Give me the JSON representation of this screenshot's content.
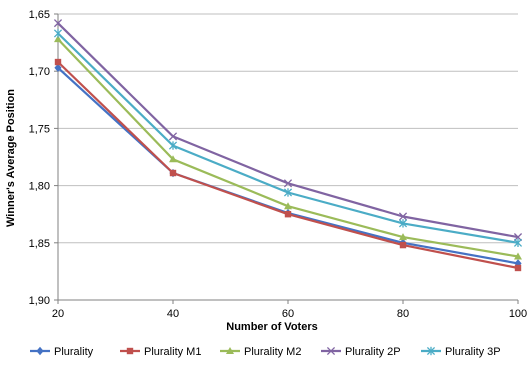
{
  "chart_data": {
    "type": "line",
    "xlabel": "Number of Voters",
    "ylabel": "Winner's Average Position",
    "x": [
      20,
      40,
      60,
      80,
      100
    ],
    "x_ticks": [
      "20",
      "40",
      "60",
      "80",
      "100"
    ],
    "y_ticks": [
      {
        "value": 1.65,
        "label": "1,65"
      },
      {
        "value": 1.7,
        "label": "1,70"
      },
      {
        "value": 1.75,
        "label": "1,75"
      },
      {
        "value": 1.8,
        "label": "1,80"
      },
      {
        "value": 1.85,
        "label": "1,85"
      },
      {
        "value": 1.9,
        "label": "1,90"
      }
    ],
    "ylim": [
      1.65,
      1.9
    ],
    "y_inverted": true,
    "grid": "horizontal",
    "legend_position": "bottom",
    "series": [
      {
        "name": "Plurality",
        "color": "#4472C4",
        "marker": "diamond",
        "values": [
          1.697,
          1.789,
          1.824,
          1.85,
          1.868
        ]
      },
      {
        "name": "Plurality M1",
        "color": "#C0504D",
        "marker": "square",
        "values": [
          1.692,
          1.789,
          1.825,
          1.852,
          1.872
        ]
      },
      {
        "name": "Plurality M2",
        "color": "#9BBB59",
        "marker": "triangle",
        "values": [
          1.672,
          1.777,
          1.818,
          1.845,
          1.862
        ]
      },
      {
        "name": "Plurality 2P",
        "color": "#8064A2",
        "marker": "x",
        "values": [
          1.658,
          1.757,
          1.798,
          1.827,
          1.845
        ]
      },
      {
        "name": "Plurality 3P",
        "color": "#4BACC6",
        "marker": "star",
        "values": [
          1.667,
          1.765,
          1.806,
          1.833,
          1.85
        ]
      }
    ]
  }
}
